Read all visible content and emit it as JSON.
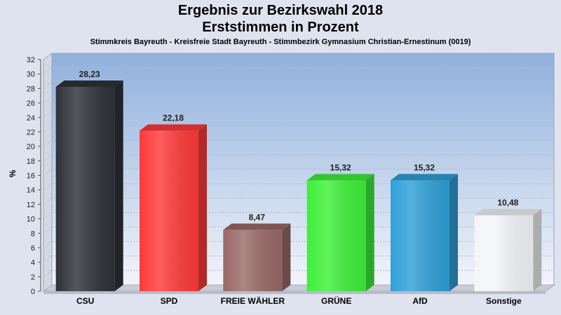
{
  "chart_data": {
    "type": "bar",
    "title": "Ergebnis zur Bezirkswahl 2018",
    "subtitle": "Erststimmen in Prozent",
    "caption": "Stimmkreis Bayreuth - Kreisfreie Stadt Bayreuth - Stimmbezirk Gymnasium Christian-Ernestinum (0019)",
    "ylabel": "%",
    "xlabel": "",
    "ylim": [
      0,
      32
    ],
    "yticks": [
      0,
      2,
      4,
      6,
      8,
      10,
      12,
      14,
      16,
      18,
      20,
      22,
      24,
      26,
      28,
      30,
      32
    ],
    "grid": true,
    "categories": [
      "CSU",
      "SPD",
      "FREIE WÄHLER",
      "GRÜNE",
      "AfD",
      "Sonstige"
    ],
    "values": [
      28.23,
      22.18,
      8.47,
      15.32,
      15.32,
      10.48
    ],
    "value_labels": [
      "28,23",
      "22,18",
      "8,47",
      "15,32",
      "15,32",
      "10,48"
    ],
    "colors": [
      "#2e3238",
      "#ff3a3a",
      "#9a6a68",
      "#3ef03a",
      "#2fa0d8",
      "#f4f5f8"
    ]
  }
}
